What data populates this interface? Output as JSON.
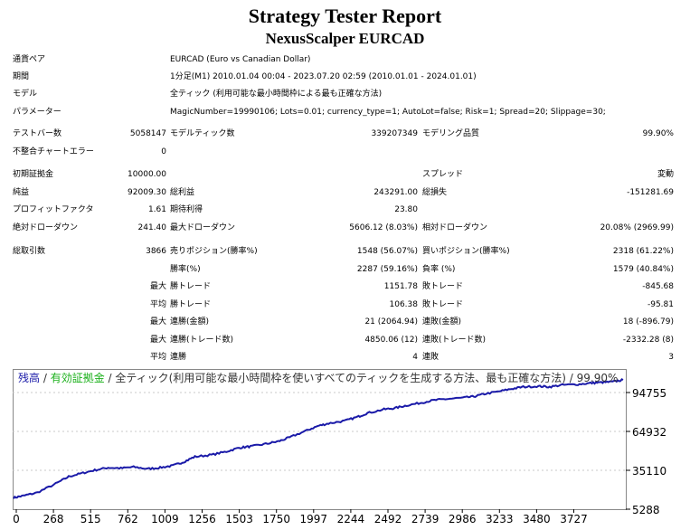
{
  "report": {
    "title": "Strategy Tester Report",
    "subtitle": "NexusScalper EURCAD"
  },
  "info": {
    "pair_label": "通貨ペア",
    "pair_value": "EURCAD (Euro vs Canadian Dollar)",
    "period_label": "期間",
    "period_value": "1分足(M1) 2010.01.04 00:04 - 2023.07.20 02:59 (2010.01.01 - 2024.01.01)",
    "model_label": "モデル",
    "model_value": "全ティック (利用可能な最小時間枠による最も正確な方法)",
    "params_label": "パラメーター",
    "params_value": "MagicNumber=19990106; Lots=0.01; currency_type=1; AutoLot=false; Risk=1; Spread=20; Slippage=30;"
  },
  "stats": {
    "bars_label": "テストバー数",
    "bars_value": "5058147",
    "ticks_label": "モデルティック数",
    "ticks_value": "339207349",
    "quality_label": "モデリング品質",
    "quality_value": "99.90%",
    "mismatch_label": "不整合チャートエラー",
    "mismatch_value": "0",
    "deposit_label": "初期証拠金",
    "deposit_value": "10000.00",
    "spread_label": "スプレッド",
    "spread_value": "変動",
    "netprofit_label": "純益",
    "netprofit_value": "92009.30",
    "grossprofit_label": "総利益",
    "grossprofit_value": "243291.00",
    "grossloss_label": "総損失",
    "grossloss_value": "-151281.69",
    "pf_label": "プロフィットファクタ",
    "pf_value": "1.61",
    "payoff_label": "期待利得",
    "payoff_value": "23.80",
    "absdd_label": "絶対ドローダウン",
    "absdd_value": "241.40",
    "maxdd_label": "最大ドローダウン",
    "maxdd_value": "5606.12 (8.03%)",
    "reldd_label": "相対ドローダウン",
    "reldd_value": "20.08% (2969.99)",
    "trades_label": "総取引数",
    "trades_value": "3866",
    "short_label": "売りポジション(勝率%)",
    "short_value": "1548 (56.07%)",
    "long_label": "買いポジション(勝率%)",
    "long_value": "2318 (61.22%)",
    "winpct_label": "勝率(%)",
    "winpct_value": "2287 (59.16%)",
    "losspct_label": "負率 (%)",
    "losspct_value": "1579 (40.84%)",
    "max_label": "最大",
    "largestwin_label": "勝トレード",
    "largestwin_value": "1151.78",
    "largestloss_label": "敗トレード",
    "largestloss_value": "-845.68",
    "avg_label": "平均",
    "avgwin_label": "勝トレード",
    "avgwin_value": "106.38",
    "avgloss_label": "敗トレード",
    "avgloss_value": "-95.81",
    "maxconswin_label": "連勝(金額)",
    "maxconswin_value": "21 (2064.94)",
    "maxconsloss_label": "連敗(金額)",
    "maxconsloss_value": "18 (-896.79)",
    "maxconsprofit_label": "連勝(トレード数)",
    "maxconsprofit_value": "4850.06 (12)",
    "maxconslossamt_label": "連敗(トレード数)",
    "maxconslossamt_value": "-2332.28 (8)",
    "avgconswin_label": "連勝",
    "avgconswin_value": "4",
    "avgconsloss_label": "連敗",
    "avgconsloss_value": "3"
  },
  "chart_data": {
    "type": "line",
    "legend": {
      "balance": "残高",
      "sep1": " / ",
      "equity": "有効証拠金",
      "rest": " / 全ティック(利用可能な最小時間枠を使いすべてのティックを生成する方法、最も正確な方法) / 99.90%"
    },
    "colors": {
      "balance": "#1a1aa8",
      "equity": "#1ab01a",
      "background": "#ffffff",
      "grid": "#c8c8c8"
    },
    "x_ticks": [
      "0",
      "268",
      "515",
      "762",
      "1009",
      "1256",
      "1503",
      "1750",
      "1997",
      "2244",
      "2492",
      "2739",
      "2986",
      "3233",
      "3480",
      "3727"
    ],
    "y_ticks": [
      "94755",
      "64932",
      "35110",
      "5288"
    ],
    "xlim": [
      0,
      3866
    ],
    "ylim": [
      5288,
      102000
    ],
    "series": [
      {
        "x": [
          0,
          60,
          150,
          268,
          350,
          430,
          515,
          600,
          680,
          762,
          850,
          930,
          1009,
          1080,
          1150,
          1256,
          1350,
          1430,
          1503,
          1600,
          1680,
          1750,
          1850,
          1930,
          1997,
          2100,
          2180,
          2244,
          2350,
          2420,
          2492,
          2580,
          2660,
          2739,
          2850,
          2920,
          2986,
          3080,
          3160,
          3233,
          3330,
          3400,
          3480,
          3580,
          3660,
          3727,
          3800,
          3866
        ],
        "values": [
          10000,
          11500,
          14000,
          21000,
          26500,
          29000,
          31500,
          33500,
          33000,
          34000,
          32500,
          33500,
          35000,
          38000,
          42000,
          43500,
          46000,
          49000,
          50000,
          52000,
          54000,
          57000,
          62000,
          66000,
          68000,
          70000,
          73000,
          76000,
          79000,
          80000,
          82000,
          84000,
          86000,
          87000,
          88000,
          89000,
          91000,
          93000,
          95000,
          96500,
          97000,
          96500,
          98000,
          98500,
          99500,
          100000,
          100500,
          102000
        ]
      }
    ]
  }
}
